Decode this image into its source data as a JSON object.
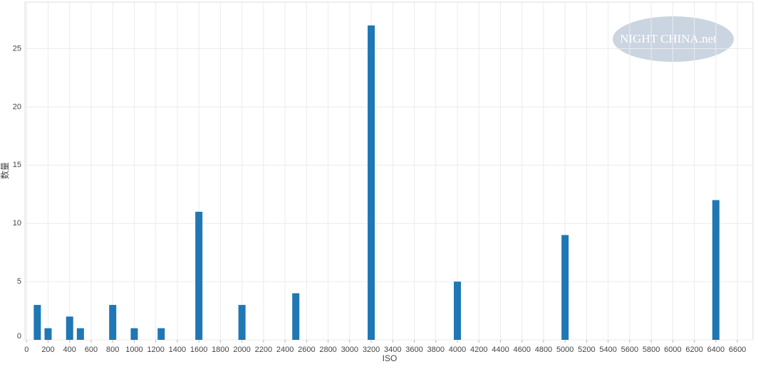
{
  "chart_data": {
    "type": "bar",
    "watermark": "NIGHT CHINA.net",
    "x_label": "ISO",
    "y_label": "数量",
    "x": [
      100,
      200,
      400,
      500,
      800,
      1000,
      1250,
      1600,
      2000,
      2500,
      3200,
      4000,
      5000,
      6400
    ],
    "values": [
      3,
      1,
      2,
      1,
      3,
      1,
      1,
      11,
      3,
      4,
      27,
      5,
      9,
      12
    ],
    "color": "#1f77b4",
    "xlim": [
      -15,
      6745
    ],
    "xticks": [
      0,
      200,
      400,
      600,
      800,
      1000,
      1200,
      1400,
      1600,
      1800,
      2000,
      2200,
      2400,
      2600,
      2800,
      3000,
      3200,
      3400,
      3600,
      3800,
      4000,
      4200,
      4400,
      4600,
      4800,
      5000,
      5200,
      5400,
      5600,
      5800,
      6000,
      6200,
      6400,
      6600
    ],
    "ylim": [
      0,
      29
    ],
    "yticks": [
      0,
      5,
      10,
      15,
      20,
      25
    ],
    "grid": true
  }
}
